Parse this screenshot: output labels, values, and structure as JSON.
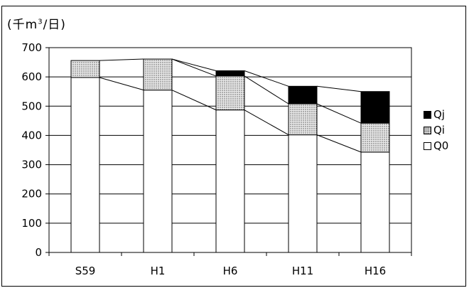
{
  "chart_data": {
    "type": "bar",
    "stacked": true,
    "title": "",
    "unit_label_prefix": "(千m",
    "unit_label_sup": "3",
    "unit_label_suffix": "/日)",
    "categories": [
      "S59",
      "H1",
      "H6",
      "H11",
      "H16"
    ],
    "series": [
      {
        "name": "Q0",
        "values": [
          598,
          555,
          487,
          402,
          343
        ]
      },
      {
        "name": "Qi",
        "values": [
          58,
          106,
          116,
          106,
          99
        ]
      },
      {
        "name": "Qj",
        "values": [
          0,
          0,
          18,
          60,
          108
        ]
      }
    ],
    "yticks": [
      "0",
      "100",
      "200",
      "300",
      "400",
      "500",
      "600",
      "700"
    ],
    "ylim": [
      0,
      700
    ],
    "grid": true,
    "legend_position": "right",
    "legend_order": [
      "Qj",
      "Qi",
      "Q0"
    ],
    "colors": {
      "Q0": "#ffffff",
      "Qi": "#e6e6e6",
      "Qj": "#000000"
    }
  }
}
